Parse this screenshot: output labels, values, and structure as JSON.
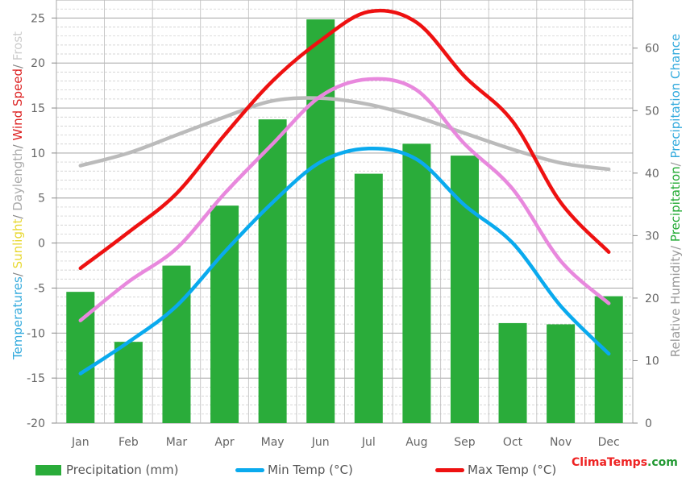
{
  "chart_data": {
    "type": "bar",
    "categories": [
      "Jan",
      "Feb",
      "Mar",
      "Apr",
      "May",
      "Jun",
      "Jul",
      "Aug",
      "Sep",
      "Oct",
      "Nov",
      "Dec"
    ],
    "left_axis": {
      "title_parts": [
        {
          "text": "Temperatures",
          "color": "#33aadd"
        },
        {
          "text": "/ ",
          "color": "#888888"
        },
        {
          "text": "Sunlight",
          "color": "#e8d830"
        },
        {
          "text": "/ ",
          "color": "#888888"
        },
        {
          "text": "Daylength",
          "color": "#aaaaaa"
        },
        {
          "text": "/ ",
          "color": "#888888"
        },
        {
          "text": "Wind Speed",
          "color": "#dd2222"
        },
        {
          "text": "/ ",
          "color": "#888888"
        },
        {
          "text": "Frost",
          "color": "#cccccc"
        }
      ],
      "ylim": [
        -20,
        27
      ],
      "ticks": [
        -20,
        -15,
        -10,
        -5,
        0,
        5,
        10,
        15,
        20,
        25
      ]
    },
    "right_axis": {
      "title_parts": [
        {
          "text": "Relative Humidity/ ",
          "color": "#999999"
        },
        {
          "text": "Precipitation",
          "color": "#22aa33"
        },
        {
          "text": "/ ",
          "color": "#999999"
        },
        {
          "text": "Precipitation Chance",
          "color": "#33aadd"
        }
      ],
      "ylim": [
        0,
        67.7
      ],
      "ticks": [
        0,
        10,
        20,
        30,
        40,
        50,
        60
      ]
    },
    "series": [
      {
        "name": "Precipitation (mm)",
        "type": "bar",
        "axis": "right",
        "color": "#2aac3a",
        "values": [
          21,
          13,
          25.2,
          34.8,
          48.6,
          64.6,
          39.9,
          44.7,
          42.8,
          16,
          15.8,
          20.3
        ]
      },
      {
        "name": "Min Temp (°C)",
        "type": "line",
        "axis": "left",
        "color": "#0aaaee",
        "values": [
          -14.5,
          -11,
          -7,
          -1,
          4.5,
          9,
          10.5,
          9.3,
          4.2,
          0,
          -7,
          -12.3
        ]
      },
      {
        "name": "Max Temp (°C)",
        "type": "line",
        "axis": "left",
        "color": "#ee1111",
        "values": [
          -2.8,
          1.2,
          5.5,
          12,
          18,
          22.5,
          25.7,
          24.5,
          18.5,
          13.5,
          4.5,
          -1
        ]
      },
      {
        "type": "line",
        "axis": "left",
        "color": "#e888dd",
        "values": [
          -8.6,
          -4.3,
          -0.6,
          5.5,
          11,
          16.3,
          18.2,
          17,
          11,
          6,
          -2,
          -6.7
        ]
      },
      {
        "type": "line",
        "axis": "left",
        "color": "#bbbbbb",
        "values": [
          8.6,
          10,
          12,
          14,
          15.8,
          16.1,
          15.4,
          14,
          12.2,
          10.4,
          8.9,
          8.2
        ]
      }
    ],
    "grid": true,
    "legend_position": "bottom"
  },
  "legend": [
    {
      "label": "Precipitation (mm)",
      "color": "#2aac3a"
    },
    {
      "label": "Min Temp (°C)",
      "color": "#0aaaee"
    },
    {
      "label": "Max Temp (°C)",
      "color": "#ee1111"
    }
  ],
  "brand": {
    "name": "ClimaTemps",
    "suffix": ".com",
    "name_color": "#ee2222",
    "suffix_color": "#229933"
  }
}
